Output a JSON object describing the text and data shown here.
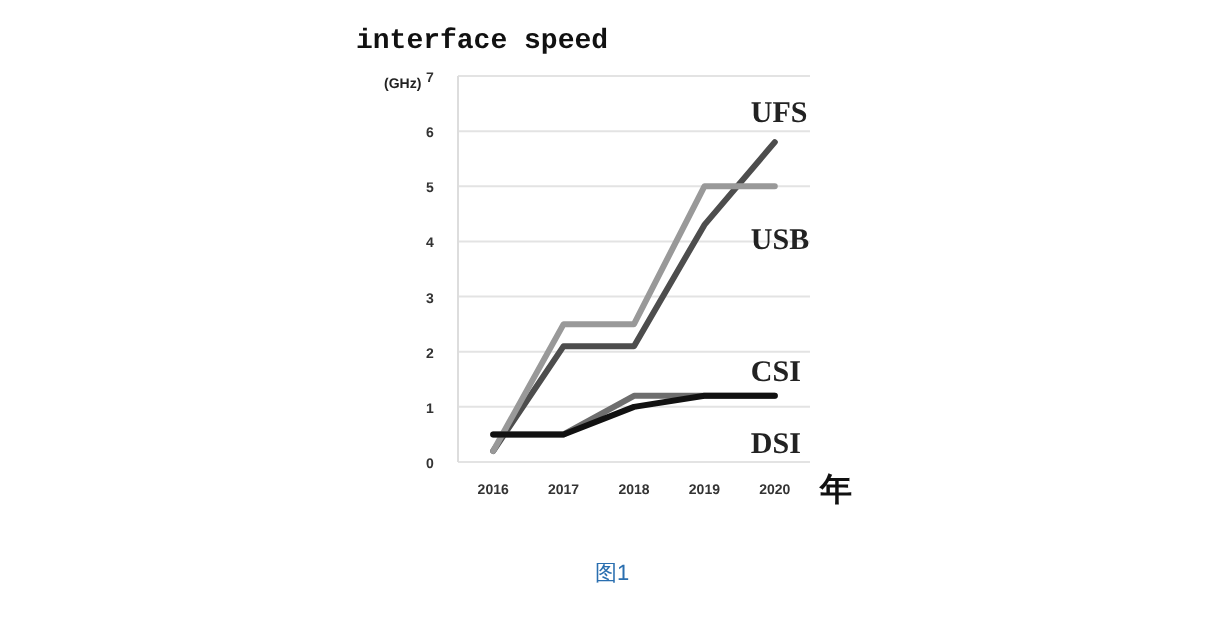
{
  "chart_data": {
    "type": "line",
    "title": "interface speed",
    "ylabel": "(GHz)",
    "xlabel": "年",
    "categories": [
      "2016",
      "2017",
      "2018",
      "2019",
      "2020"
    ],
    "ylim": [
      0,
      7
    ],
    "yticks": [
      0,
      1,
      2,
      3,
      4,
      5,
      6,
      7
    ],
    "grid": "y",
    "marker": "none",
    "line_style": "solid",
    "series": [
      {
        "name": "UFS",
        "color": "#4d4d4d",
        "values": [
          0.2,
          2.1,
          2.1,
          4.3,
          5.8
        ]
      },
      {
        "name": "USB",
        "color": "#999999",
        "values": [
          0.2,
          2.5,
          2.5,
          5.0,
          5.0
        ]
      },
      {
        "name": "CSI",
        "color": "#6e6e6e",
        "values": [
          0.5,
          0.5,
          1.2,
          1.2,
          1.2
        ]
      },
      {
        "name": "DSI",
        "color": "#111111",
        "values": [
          0.5,
          0.5,
          1.0,
          1.2,
          1.2
        ]
      }
    ],
    "annotations": [
      "图1"
    ]
  }
}
